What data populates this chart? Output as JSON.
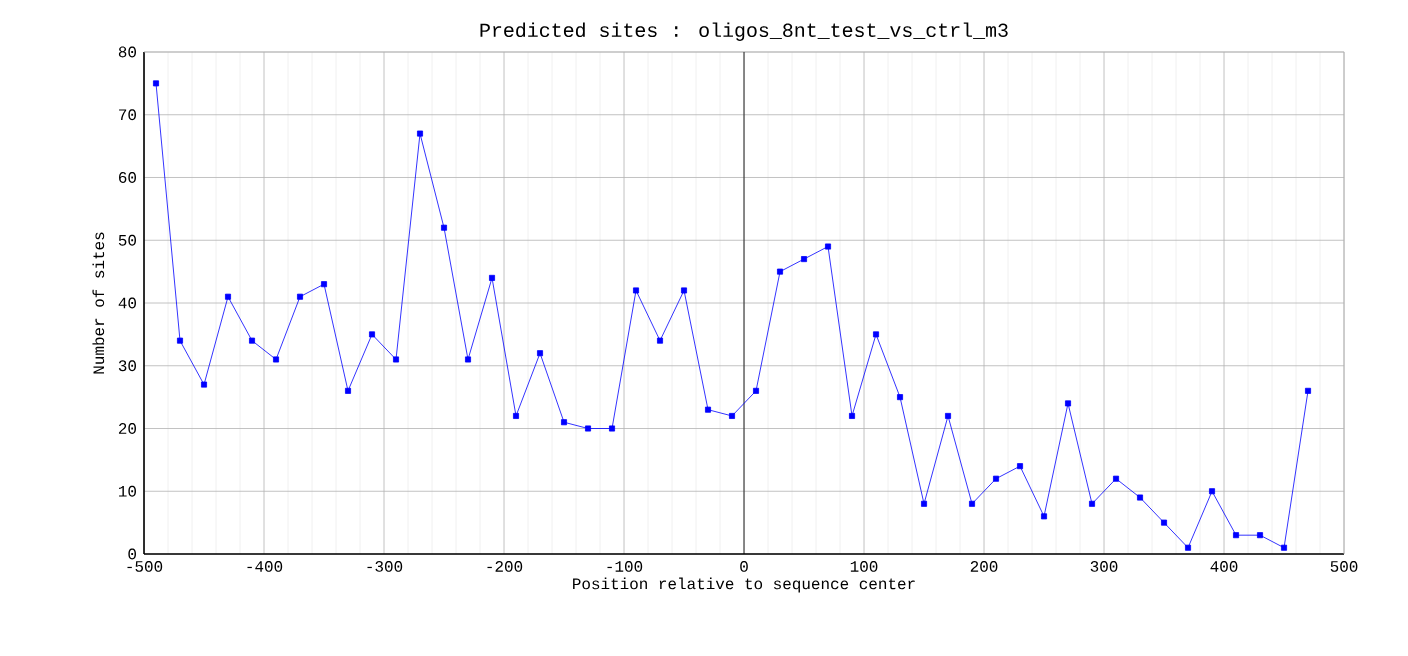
{
  "chart_data": {
    "type": "line",
    "title": "Predicted sites : oligos_8nt_test_vs_ctrl_m3",
    "xlabel": "Position relative to sequence center",
    "ylabel": "Number of sites",
    "x": [
      -490,
      -470,
      -450,
      -430,
      -410,
      -390,
      -370,
      -350,
      -330,
      -310,
      -290,
      -270,
      -250,
      -230,
      -210,
      -190,
      -170,
      -150,
      -130,
      -110,
      -90,
      -70,
      -50,
      -30,
      -10,
      10,
      30,
      50,
      70,
      90,
      110,
      130,
      150,
      170,
      190,
      210,
      230,
      250,
      270,
      290,
      310,
      330,
      350,
      370,
      390,
      410,
      430,
      450,
      470
    ],
    "series": [
      {
        "color": "#0000ff",
        "values": [
          75,
          34,
          27,
          41,
          34,
          31,
          41,
          43,
          26,
          35,
          31,
          67,
          52,
          31,
          44,
          22,
          32,
          21,
          20,
          20,
          42,
          34,
          42,
          23,
          22,
          26,
          45,
          47,
          49,
          22,
          35,
          25,
          8,
          22,
          8,
          12,
          14,
          6,
          24,
          8,
          12,
          9,
          5,
          1,
          10,
          3,
          3,
          1,
          26
        ]
      }
    ],
    "xlim": [
      -500,
      500
    ],
    "ylim": [
      0,
      80
    ],
    "xticks": [
      -500,
      -400,
      -300,
      -200,
      -100,
      0,
      100,
      200,
      300,
      400,
      500
    ],
    "yticks": [
      0,
      10,
      20,
      30,
      40,
      50,
      60,
      70,
      80
    ],
    "ref_lines": [
      {
        "axis": "x",
        "value": 0,
        "color": "#000000"
      }
    ],
    "grid": true,
    "marker": "square",
    "line_style": "solid"
  }
}
